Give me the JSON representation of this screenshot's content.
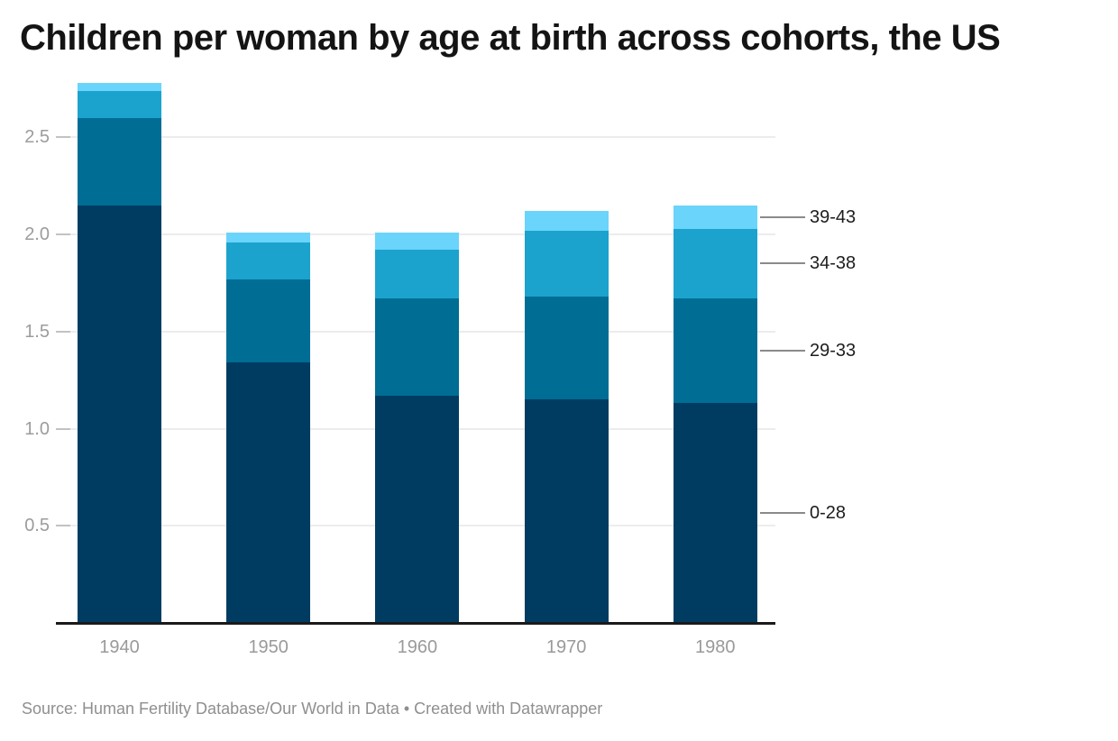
{
  "title": "Children per woman by age at birth across cohorts, the US",
  "source_line": "Source: Human Fertility Database/Our World in Data • Created with Datawrapper",
  "chart_data": {
    "type": "bar",
    "stacked": true,
    "title": "Children per woman by age at birth across cohorts, the US",
    "xlabel": "",
    "ylabel": "",
    "categories": [
      "1940",
      "1950",
      "1960",
      "1970",
      "1980"
    ],
    "series": [
      {
        "name": "0-28",
        "color": "#003c61",
        "values": [
          2.15,
          1.34,
          1.17,
          1.15,
          1.13
        ]
      },
      {
        "name": "29-33",
        "color": "#006d94",
        "values": [
          0.45,
          0.43,
          0.5,
          0.53,
          0.54
        ]
      },
      {
        "name": "34-38",
        "color": "#1ba3ce",
        "values": [
          0.14,
          0.19,
          0.25,
          0.34,
          0.36
        ]
      },
      {
        "name": "39-43",
        "color": "#6ad4fb",
        "values": [
          0.04,
          0.05,
          0.09,
          0.1,
          0.12
        ]
      }
    ],
    "totals": [
      2.78,
      2.01,
      2.01,
      2.12,
      2.15
    ],
    "ylim": [
      0,
      2.8
    ],
    "yticks": [
      "0.5",
      "1.0",
      "1.5",
      "2.0",
      "2.5"
    ],
    "grid": true,
    "legend_position": "right-annotations",
    "legend_labels": [
      "39-43",
      "34-38",
      "29-33",
      "0-28"
    ]
  },
  "colors": {
    "age_0_28": "#003c61",
    "age_29_33": "#006d94",
    "age_34_38": "#1ba3ce",
    "age_39_43": "#6ad4fb",
    "gridline": "#ececec",
    "axis_line": "#1a1a1a",
    "axis_text": "#9a9a9a",
    "title_text": "#141414",
    "source_text": "#8f8f8f"
  }
}
